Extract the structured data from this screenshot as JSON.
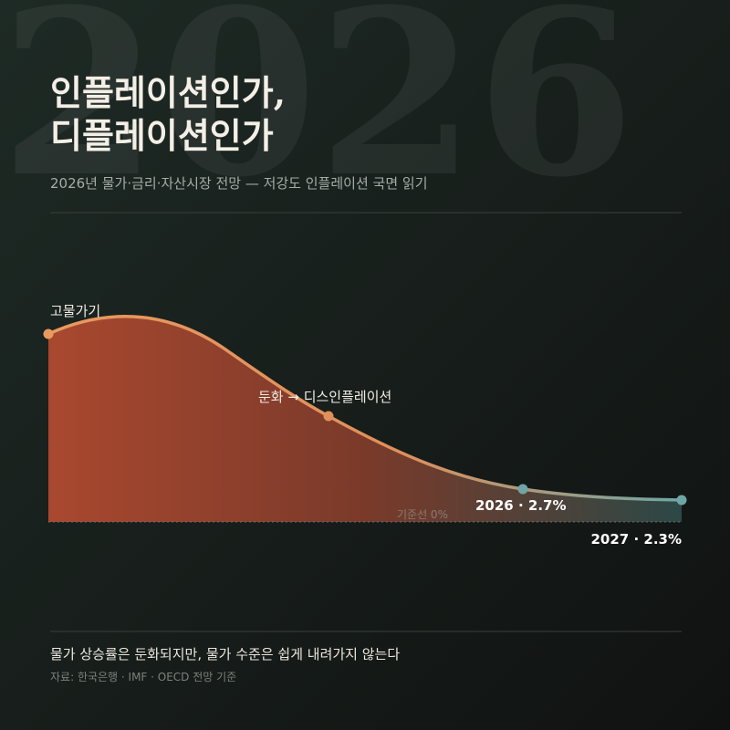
{
  "background_year": "2026",
  "header": {
    "title_lines": [
      "인플레이션인가,",
      "디플레이션인가"
    ],
    "subtitle": "2026년 물가·금리·자산시장 전망 — 저강도 인플레이션 국면 읽기"
  },
  "chart": {
    "labels": [
      "고물가기",
      "둔화 → 디스인플레이션",
      "2026 · 2.7%",
      "2027 · 2.3%"
    ],
    "baseline": "기준선 0%"
  },
  "footer": {
    "headline": "물가 상승률은 둔화되지만, 물가 수준은 쉽게 내려가지 않는다",
    "source": "자료: 한국은행 · IMF · OECD 전망 기준"
  }
}
